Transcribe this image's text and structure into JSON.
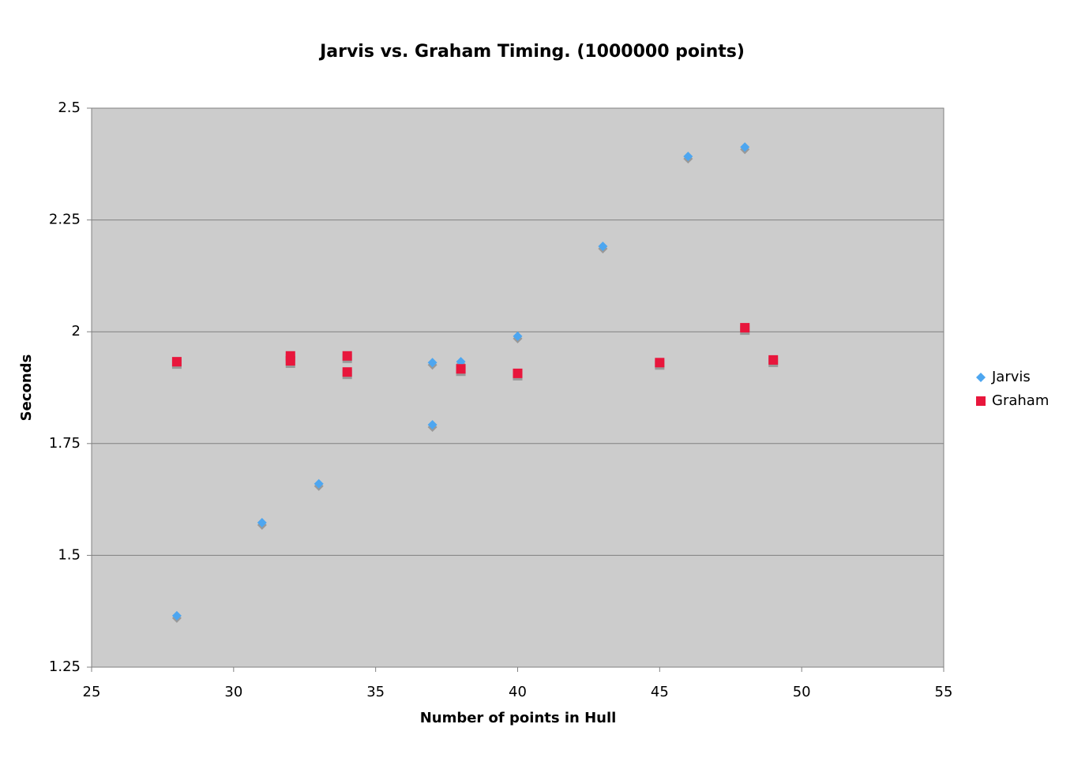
{
  "chart_data": {
    "type": "scatter",
    "title": "Jarvis vs. Graham Timing. (1000000 points)",
    "xlabel": "Number of points in Hull",
    "ylabel": "Seconds",
    "xlim": [
      25,
      55
    ],
    "xticks": [
      25,
      30,
      35,
      40,
      45,
      50,
      55
    ],
    "ylim": [
      1.25,
      2.5
    ],
    "yticks": [
      1.25,
      1.5,
      1.75,
      2,
      2.25,
      2.5
    ],
    "grid": true,
    "legend": "right",
    "series": [
      {
        "name": "Jarvis",
        "color": "#4da6f0",
        "marker": "diamond",
        "x": [
          28,
          31,
          33,
          37,
          37,
          38,
          40,
          43,
          46,
          48
        ],
        "values": [
          1.365,
          1.573,
          1.66,
          1.792,
          1.931,
          1.933,
          1.99,
          2.191,
          2.392,
          2.413
        ]
      },
      {
        "name": "Graham",
        "color": "#e8163c",
        "marker": "square",
        "x": [
          28,
          32,
          32,
          34,
          34,
          38,
          40,
          45,
          48,
          49
        ],
        "values": [
          1.933,
          1.946,
          1.935,
          1.946,
          1.91,
          1.917,
          1.907,
          1.931,
          2.009,
          1.937
        ]
      }
    ]
  }
}
